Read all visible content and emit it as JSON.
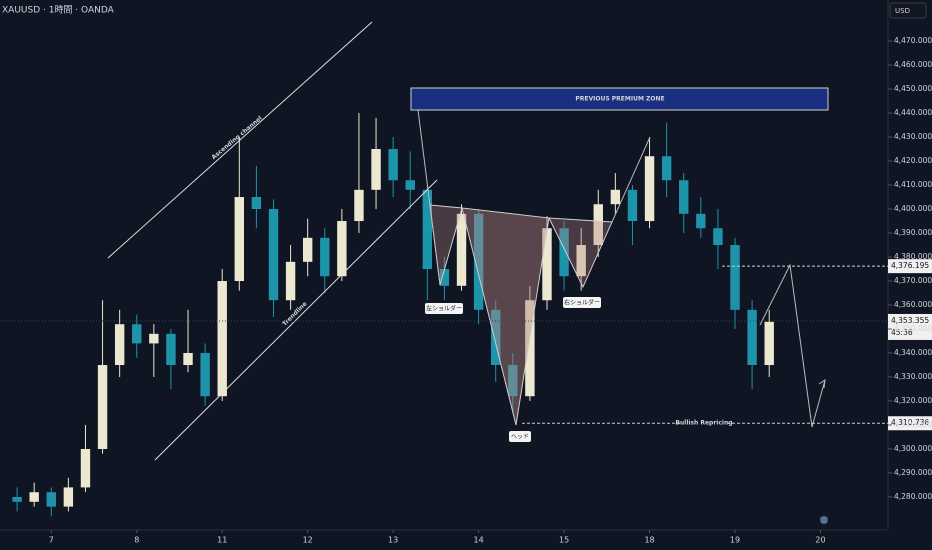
{
  "chart_data": {
    "type": "candlestick",
    "title": "XAUUSD · 1時間 · OANDA",
    "currency": "USD",
    "colors": {
      "up": "#ece7cf",
      "down": "#1e94ab"
    },
    "xlim": [
      -0.6,
      9.79
    ],
    "xticks": [
      {
        "value": 0,
        "label": "7"
      },
      {
        "value": 1,
        "label": "8"
      },
      {
        "value": 2,
        "label": "11"
      },
      {
        "value": 3,
        "label": "12"
      },
      {
        "value": 4,
        "label": "13"
      },
      {
        "value": 5,
        "label": "14"
      },
      {
        "value": 6,
        "label": "15"
      },
      {
        "value": 7,
        "label": "18"
      },
      {
        "value": 8,
        "label": "19"
      },
      {
        "value": 9,
        "label": "20"
      }
    ],
    "ylim": [
      4266.25,
      4487.1
    ],
    "yticks": [
      {
        "value": 4280,
        "label": "4,280.000"
      },
      {
        "value": 4290,
        "label": "4,290.000"
      },
      {
        "value": 4300,
        "label": "4,300.000"
      },
      {
        "value": 4310,
        "label": "4,310.000"
      },
      {
        "value": 4320,
        "label": "4,320.000"
      },
      {
        "value": 4330,
        "label": "4,330.000"
      },
      {
        "value": 4340,
        "label": "4,340.000"
      },
      {
        "value": 4350,
        "label": "4,350.000"
      },
      {
        "value": 4360,
        "label": "4,360.000"
      },
      {
        "value": 4370,
        "label": "4,370.000"
      },
      {
        "value": 4380,
        "label": "4,380.000"
      },
      {
        "value": 4390,
        "label": "4,390.000"
      },
      {
        "value": 4400,
        "label": "4,400.000"
      },
      {
        "value": 4410,
        "label": "4,410.000"
      },
      {
        "value": 4420,
        "label": "4,420.000"
      },
      {
        "value": 4430,
        "label": "4,430.000"
      },
      {
        "value": 4440,
        "label": "4,440.000"
      },
      {
        "value": 4450,
        "label": "4,450.000"
      },
      {
        "value": 4460,
        "label": "4,460.000"
      },
      {
        "value": 4470,
        "label": "4,470.000"
      }
    ],
    "x": [
      -0.4,
      -0.2,
      0,
      0.2,
      0.4,
      0.6,
      0.8,
      1,
      1.2,
      1.4,
      1.6,
      1.8,
      2,
      2.2,
      2.4,
      2.6,
      2.8,
      3,
      3.2,
      3.4,
      3.6,
      3.8,
      4,
      4.2,
      4.4,
      4.6,
      4.8,
      5,
      5.2,
      5.4,
      5.6,
      5.8,
      6,
      6.2,
      6.4,
      6.6,
      6.8,
      7,
      7.2,
      7.4,
      7.6,
      7.8,
      8,
      8.2,
      8.4
    ],
    "ohlc": [
      [
        4280,
        4284,
        4274,
        4278
      ],
      [
        4278,
        4286,
        4276,
        4282
      ],
      [
        4282,
        4284,
        4272,
        4276
      ],
      [
        4276,
        4288,
        4274,
        4284
      ],
      [
        4284,
        4310,
        4282,
        4300
      ],
      [
        4300,
        4362,
        4298,
        4335
      ],
      [
        4335,
        4358,
        4330,
        4352
      ],
      [
        4352,
        4356,
        4338,
        4344
      ],
      [
        4344,
        4352,
        4330,
        4348
      ],
      [
        4348,
        4350,
        4325,
        4335
      ],
      [
        4335,
        4358,
        4332,
        4340
      ],
      [
        4340,
        4344,
        4318,
        4322
      ],
      [
        4322,
        4375,
        4320,
        4370
      ],
      [
        4370,
        4430,
        4366,
        4405
      ],
      [
        4405,
        4418,
        4392,
        4400
      ],
      [
        4400,
        4404,
        4355,
        4362
      ],
      [
        4362,
        4385,
        4358,
        4378
      ],
      [
        4378,
        4396,
        4372,
        4388
      ],
      [
        4388,
        4392,
        4365,
        4372
      ],
      [
        4372,
        4400,
        4370,
        4395
      ],
      [
        4395,
        4440,
        4390,
        4408
      ],
      [
        4408,
        4438,
        4400,
        4425
      ],
      [
        4425,
        4430,
        4405,
        4412
      ],
      [
        4412,
        4424,
        4400,
        4408
      ],
      [
        4408,
        4410,
        4362,
        4375
      ],
      [
        4375,
        4380,
        4362,
        4368
      ],
      [
        4368,
        4402,
        4366,
        4398
      ],
      [
        4398,
        4400,
        4352,
        4358
      ],
      [
        4358,
        4362,
        4328,
        4335
      ],
      [
        4335,
        4340,
        4315,
        4322
      ],
      [
        4322,
        4368,
        4320,
        4362
      ],
      [
        4362,
        4397,
        4358,
        4392
      ],
      [
        4392,
        4395,
        4366,
        4372
      ],
      [
        4372,
        4392,
        4366,
        4385
      ],
      [
        4385,
        4408,
        4380,
        4402
      ],
      [
        4402,
        4415,
        4398,
        4408
      ],
      [
        4408,
        4410,
        4385,
        4395
      ],
      [
        4395,
        4430,
        4392,
        4422
      ],
      [
        4422,
        4436,
        4405,
        4412
      ],
      [
        4412,
        4415,
        4390,
        4398
      ],
      [
        4398,
        4405,
        4388,
        4392
      ],
      [
        4392,
        4400,
        4375,
        4385
      ],
      [
        4385,
        4388,
        4350,
        4358
      ],
      [
        4358,
        4362,
        4325,
        4335
      ],
      [
        4335,
        4358,
        4330,
        4353
      ]
    ],
    "price_labels": [
      {
        "value": 4376.195,
        "label": "4,376.195"
      },
      {
        "value": 4353.355,
        "label": "4,353.355"
      },
      {
        "value": 4310.736,
        "label": "4,310.736"
      }
    ],
    "countdown": "45:36",
    "annotations": {
      "zone": "PREVIOUS PREMIUM ZONE",
      "channel": "Ascending channel",
      "trendline": "Trendline",
      "left_shoulder": "左ショルダー",
      "head": "ヘッド",
      "right_shoulder": "右ショルダー",
      "repricing": "Bullish Repricing"
    }
  }
}
